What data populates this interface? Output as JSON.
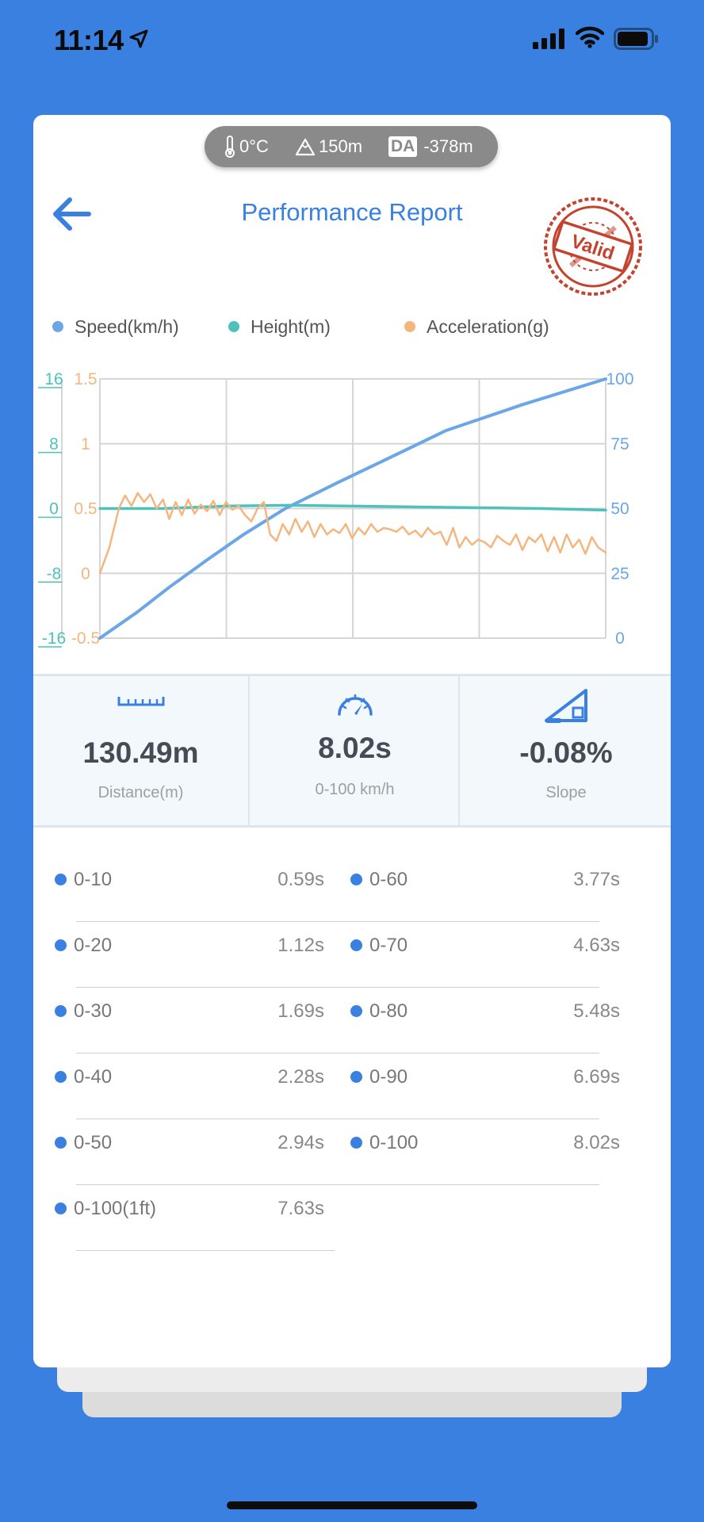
{
  "status_bar": {
    "time": "11:14"
  },
  "environment": {
    "temperature": "0°C",
    "altitude": "150m",
    "da_badge": "DA",
    "density_altitude": "-378m"
  },
  "header": {
    "title": "Performance Report",
    "stamp_text": "Valid"
  },
  "legend": [
    {
      "label": "Speed(km/h)",
      "color": "#6aa6e8"
    },
    {
      "label": "Height(m)",
      "color": "#4fc1bd"
    },
    {
      "label": "Acceleration(g)",
      "color": "#f4b67e"
    }
  ],
  "chart_data": {
    "type": "line",
    "axes": {
      "height_ticks": [
        "16",
        "8",
        "0",
        "-8",
        "-16"
      ],
      "acceleration_ticks": [
        "1.5",
        "1",
        "0.5",
        "0",
        "-0.5"
      ],
      "speed_ticks": [
        "100",
        "75",
        "50",
        "25",
        "0"
      ],
      "height_range": [
        -16,
        16
      ],
      "acceleration_range": [
        -0.5,
        1.5
      ],
      "speed_range": [
        0,
        100
      ],
      "time_range_s": [
        0,
        8.02
      ],
      "grid": true
    },
    "series": [
      {
        "name": "Speed(km/h)",
        "color": "#6aa6e8",
        "x": [
          0,
          0.59,
          1.12,
          1.69,
          2.28,
          2.94,
          3.77,
          4.63,
          5.48,
          6.69,
          8.02
        ],
        "y": [
          0,
          10,
          20,
          30,
          40,
          50,
          60,
          70,
          80,
          90,
          100
        ]
      },
      {
        "name": "Height(m)",
        "color": "#4fc1bd",
        "x": [
          0,
          1,
          2,
          3,
          4,
          5,
          6,
          7,
          8.02
        ],
        "y": [
          0,
          0,
          0.3,
          0.4,
          0.3,
          0.2,
          0.1,
          0,
          -0.2
        ]
      },
      {
        "name": "Acceleration(g)",
        "color": "#f4b67e",
        "x": [
          0,
          0.15,
          0.3,
          0.4,
          0.5,
          0.6,
          0.7,
          0.8,
          0.9,
          1.0,
          1.1,
          1.2,
          1.3,
          1.4,
          1.5,
          1.6,
          1.7,
          1.8,
          1.9,
          2.0,
          2.1,
          2.2,
          2.3,
          2.4,
          2.5,
          2.6,
          2.7,
          2.8,
          2.9,
          3.0,
          3.1,
          3.2,
          3.3,
          3.4,
          3.5,
          3.6,
          3.7,
          3.8,
          3.9,
          4.0,
          4.1,
          4.2,
          4.3,
          4.4,
          4.5,
          4.6,
          4.7,
          4.8,
          4.9,
          5.0,
          5.1,
          5.2,
          5.3,
          5.4,
          5.5,
          5.6,
          5.7,
          5.8,
          5.9,
          6.0,
          6.1,
          6.2,
          6.3,
          6.4,
          6.5,
          6.6,
          6.7,
          6.8,
          6.9,
          7.0,
          7.1,
          7.2,
          7.3,
          7.4,
          7.5,
          7.6,
          7.7,
          7.8,
          7.9,
          8.02
        ],
        "y": [
          0,
          0.2,
          0.5,
          0.6,
          0.52,
          0.62,
          0.55,
          0.61,
          0.5,
          0.57,
          0.42,
          0.55,
          0.45,
          0.57,
          0.46,
          0.53,
          0.48,
          0.56,
          0.45,
          0.55,
          0.49,
          0.52,
          0.45,
          0.4,
          0.5,
          0.55,
          0.3,
          0.25,
          0.38,
          0.3,
          0.42,
          0.32,
          0.4,
          0.28,
          0.38,
          0.3,
          0.34,
          0.31,
          0.38,
          0.27,
          0.35,
          0.3,
          0.38,
          0.32,
          0.35,
          0.34,
          0.32,
          0.36,
          0.3,
          0.33,
          0.28,
          0.35,
          0.3,
          0.32,
          0.22,
          0.35,
          0.2,
          0.28,
          0.22,
          0.26,
          0.24,
          0.2,
          0.29,
          0.25,
          0.22,
          0.3,
          0.18,
          0.28,
          0.24,
          0.3,
          0.17,
          0.28,
          0.16,
          0.3,
          0.2,
          0.26,
          0.15,
          0.28,
          0.2,
          0.16
        ]
      }
    ]
  },
  "stats": [
    {
      "icon": "ruler-icon",
      "value": "130.49m",
      "label": "Distance(m)"
    },
    {
      "icon": "speedometer-icon",
      "value": "8.02s",
      "label": "0-100 km/h"
    },
    {
      "icon": "slope-icon",
      "value": "-0.08%",
      "label": "Slope"
    }
  ],
  "splits_left": [
    {
      "label": "0-10",
      "time": "0.59s"
    },
    {
      "label": "0-20",
      "time": "1.12s"
    },
    {
      "label": "0-30",
      "time": "1.69s"
    },
    {
      "label": "0-40",
      "time": "2.28s"
    },
    {
      "label": "0-50",
      "time": "2.94s"
    },
    {
      "label": "0-100(1ft)",
      "time": "7.63s"
    }
  ],
  "splits_right": [
    {
      "label": "0-60",
      "time": "3.77s"
    },
    {
      "label": "0-70",
      "time": "4.63s"
    },
    {
      "label": "0-80",
      "time": "5.48s"
    },
    {
      "label": "0-90",
      "time": "6.69s"
    },
    {
      "label": "0-100",
      "time": "8.02s"
    }
  ]
}
